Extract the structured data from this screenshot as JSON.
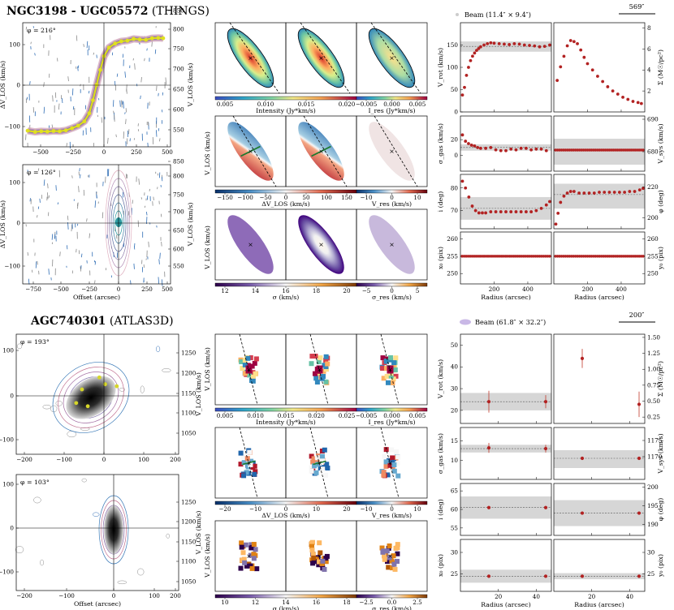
{
  "chart_data": [
    {
      "type": "composite",
      "galaxy": "NGC3198",
      "title_bold": "NGC3198 - UGC05572",
      "title_rest": "(THINGS)",
      "beam_label": "Beam (11.4″ × 9.4″)",
      "scale_label": "569″",
      "pv": {
        "major_phi": "φ = 216°",
        "minor_phi": "φ = 126°",
        "ylabel_left": "ΔV_LOS (km/s)",
        "ylabel_right": "V_LOS (km/s)",
        "xlabel": "Offset (arcsec)",
        "major_xticks": [
          "−500",
          "−250",
          "0",
          "250",
          "500"
        ],
        "minor_xticks": [
          "−750",
          "−500",
          "−250",
          "0",
          "250",
          "500"
        ],
        "left_yticks": [
          "−100",
          "0",
          "100"
        ],
        "right_yticks": [
          "550",
          "600",
          "650",
          "700",
          "750",
          "800",
          "850"
        ],
        "major_rotation_curve": {
          "x": [
            -560,
            -500,
            -450,
            -400,
            -350,
            -300,
            -250,
            -200,
            -150,
            -100,
            -60,
            -30,
            0,
            30,
            60,
            100,
            150,
            200,
            250,
            300,
            350,
            400,
            450,
            500,
            540
          ],
          "y": [
            -148,
            -152,
            -150,
            -151,
            -149,
            -150,
            -147,
            -140,
            -132,
            -118,
            -92,
            -50,
            0,
            48,
            92,
            120,
            133,
            140,
            142,
            148,
            146,
            145,
            150,
            151,
            150
          ]
        }
      },
      "maps": {
        "ylabel": "V_LOS (km/s)",
        "rows": [
          {
            "colorbar_label": "Intensity (Jy*km/s)",
            "ticks": [
              "0.005",
              "0.010",
              "0.015",
              "0.020"
            ],
            "res_label": "I_res (Jy*km/s)",
            "res_ticks": [
              "−0.005",
              "0.000",
              "0.005"
            ]
          },
          {
            "colorbar_label": "ΔV_LOS (km/s)",
            "ticks": [
              "−150",
              "−100",
              "−50",
              "0",
              "50",
              "100",
              "150"
            ],
            "res_label": "V_res (km/s)",
            "res_ticks": [
              "−10",
              "0",
              "10"
            ]
          },
          {
            "colorbar_label": "σ (km/s)",
            "ticks": [
              "12",
              "14",
              "16",
              "18",
              "20"
            ],
            "res_label": "σ_res (km/s)",
            "res_ticks": [
              "−5",
              "0",
              "5"
            ]
          }
        ]
      },
      "profiles": {
        "xlabel": "Radius (arcsec)",
        "xticks": [
          "200",
          "400"
        ],
        "xrange": [
          0,
          540
        ],
        "vrot": {
          "label": "V_rot (km/s)",
          "ticks": [
            "0",
            "50",
            "100",
            "150"
          ],
          "ylim": [
            0,
            200
          ],
          "band": [
            135,
            158
          ],
          "median": 147,
          "x": [
            12,
            24,
            36,
            48,
            60,
            72,
            84,
            96,
            108,
            120,
            140,
            160,
            180,
            200,
            230,
            260,
            290,
            320,
            350,
            380,
            410,
            440,
            470,
            500,
            530
          ],
          "y": [
            38,
            55,
            82,
            100,
            115,
            125,
            132,
            138,
            142,
            146,
            150,
            153,
            155,
            154,
            153,
            152,
            151,
            153,
            152,
            150,
            149,
            148,
            146,
            147,
            150
          ]
        },
        "sigma_surf": {
          "label": "Σ (M☉/pc²)",
          "ticks": [
            "2",
            "4",
            "6",
            "8"
          ],
          "ylim": [
            0,
            8.5
          ],
          "x": [
            20,
            40,
            60,
            80,
            100,
            120,
            140,
            160,
            180,
            200,
            230,
            260,
            290,
            320,
            350,
            380,
            410,
            440,
            470,
            500,
            520
          ],
          "y": [
            3.0,
            4.3,
            5.3,
            6.3,
            6.8,
            6.7,
            6.5,
            5.9,
            5.2,
            4.6,
            4.0,
            3.4,
            2.9,
            2.4,
            2.0,
            1.7,
            1.4,
            1.2,
            1.0,
            0.9,
            0.8
          ]
        },
        "sigma_gas": {
          "label": "σ_gas (km/s)",
          "ticks": [
            "0",
            "20"
          ],
          "ylim": [
            -20,
            50
          ],
          "band": [
            6,
            14
          ],
          "median": 10,
          "x": [
            12,
            30,
            48,
            66,
            84,
            102,
            120,
            150,
            180,
            210,
            240,
            270,
            300,
            330,
            360,
            390,
            420,
            450,
            480,
            510
          ],
          "y": [
            26,
            18,
            15,
            13,
            12,
            10,
            9,
            9,
            10,
            7,
            6,
            6,
            8,
            7,
            9,
            9,
            7,
            8,
            8,
            6
          ]
        },
        "vsys": {
          "label": "V_sys (km/s)",
          "ticks": [
            "680",
            "690"
          ],
          "ylim": [
            674,
            691
          ],
          "band": [
            676,
            684
          ],
          "median": 680.5,
          "value": 680.5
        },
        "incl": {
          "label": "i (deg)",
          "ticks": [
            "70",
            "80"
          ],
          "ylim": [
            62,
            86
          ],
          "band": [
            66,
            76
          ],
          "median": 71,
          "x": [
            12,
            30,
            50,
            70,
            90,
            110,
            130,
            150,
            180,
            210,
            240,
            270,
            300,
            330,
            360,
            390,
            420,
            450,
            480,
            510,
            530
          ],
          "y": [
            83,
            80,
            76,
            72,
            70,
            69,
            69,
            69,
            69.5,
            69.5,
            69.5,
            69.5,
            69.5,
            69.5,
            69.5,
            69.5,
            69.5,
            70,
            71,
            72.5,
            74
          ]
        },
        "pa": {
          "label": "φ (deg)",
          "ticks": [
            "200",
            "220"
          ],
          "ylim": [
            193,
            228
          ],
          "band": [
            206,
            222
          ],
          "median": 215,
          "x": [
            12,
            25,
            40,
            60,
            80,
            100,
            120,
            150,
            180,
            210,
            240,
            270,
            300,
            330,
            360,
            390,
            420,
            450,
            480,
            510,
            530
          ],
          "y": [
            196,
            203,
            210,
            214,
            216,
            217,
            217,
            216,
            216,
            216,
            216,
            216.5,
            216.5,
            216.5,
            216.5,
            216.5,
            216.5,
            217,
            217,
            218,
            219
          ]
        },
        "x0": {
          "label": "x₀ (pix)",
          "ticks": [
            "250",
            "255",
            "260"
          ],
          "ylim": [
            247,
            262
          ],
          "value": 255
        },
        "y0": {
          "label": "y₀ (pix)",
          "ticks": [
            "250",
            "255",
            "260"
          ],
          "ylim": [
            247,
            262
          ],
          "value": 255
        }
      }
    },
    {
      "type": "composite",
      "galaxy": "AGC740301",
      "title_bold": "AGC740301",
      "title_rest": "(ATLAS3D)",
      "beam_label": "Beam (61.8″ × 32.2″)",
      "scale_label": "200″",
      "pv": {
        "major_phi": "φ = 193°",
        "minor_phi": "φ = 103°",
        "ylabel_left": "ΔV_LOS (km/s)",
        "ylabel_right": "V_LOS (km/s)",
        "xlabel": "Offset (arcsec)",
        "major_xticks": [
          "−200",
          "−100",
          "0",
          "100",
          "200"
        ],
        "minor_xticks": [
          "−200",
          "−100",
          "0",
          "100",
          "200"
        ],
        "major_left_yticks": [
          "−100",
          "0",
          "100"
        ],
        "minor_left_yticks": [
          "−100",
          "0",
          "100"
        ],
        "major_right_yticks": [
          "1050",
          "1100",
          "1150",
          "1200",
          "1250"
        ],
        "minor_right_yticks": [
          "1050",
          "1100",
          "1150",
          "1200",
          "1250"
        ],
        "major_points": {
          "x": [
            -55,
            -25,
            20,
            50,
            -40,
            5
          ],
          "y": [
            -22,
            -30,
            25,
            20,
            12,
            42
          ]
        }
      },
      "maps": {
        "ylabel": "V_LOS (km/s)",
        "rows": [
          {
            "colorbar_label": "Intensity (Jy*km/s)",
            "ticks": [
              "0.005",
              "0.010",
              "0.015",
              "0.020",
              "0.025"
            ],
            "res_label": "I_res (Jy*km/s)",
            "res_ticks": [
              "−0.005",
              "0.000",
              "0.005"
            ]
          },
          {
            "colorbar_label": "ΔV_LOS (km/s)",
            "ticks": [
              "−20",
              "−10",
              "0",
              "10",
              "20"
            ],
            "res_label": "V_res (km/s)",
            "res_ticks": [
              "−10",
              "0",
              "10"
            ]
          },
          {
            "colorbar_label": "σ (km/s)",
            "ticks": [
              "10",
              "12",
              "14",
              "16",
              "18"
            ],
            "res_label": "σ_res (km/s)",
            "res_ticks": [
              "−2.5",
              "0.0",
              "2.5"
            ]
          }
        ]
      },
      "profiles": {
        "xlabel": "Radius (arcsec)",
        "xticks": [
          "20",
          "40"
        ],
        "xrange": [
          0,
          48
        ],
        "vrot": {
          "label": "V_rot (km/s)",
          "ticks": [
            "20",
            "30",
            "40",
            "50"
          ],
          "ylim": [
            14,
            55
          ],
          "band": [
            20,
            28
          ],
          "median": 24,
          "x": [
            15,
            45
          ],
          "y": [
            24,
            24
          ],
          "err": [
            5,
            3
          ]
        },
        "sigma_surf": {
          "label": "Σ (M☉/pc²)",
          "ticks": [
            "0.25",
            "0.50",
            "0.75",
            "1.00",
            "1.25",
            "1.50"
          ],
          "ylim": [
            0.15,
            1.55
          ],
          "x": [
            15,
            45
          ],
          "y": [
            1.17,
            0.45
          ],
          "err": [
            0.15,
            0.2
          ]
        },
        "sigma_gas": {
          "label": "σ_gas (km/s)",
          "ticks": [
            "10",
            "15"
          ],
          "ylim": [
            5,
            18.5
          ],
          "band": [
            12,
            14
          ],
          "median": 13,
          "x": [
            15,
            45
          ],
          "y": [
            13.2,
            13
          ],
          "err": [
            1.3,
            1
          ]
        },
        "vsys": {
          "label": "V_sys (km/s)",
          "ticks": [
            "1170",
            "1175"
          ],
          "ylim": [
            1163,
            1179
          ],
          "band": [
            1166.5,
            1172
          ],
          "median": 1169.5,
          "x": [
            15,
            45
          ],
          "y": [
            1169.5,
            1169.5
          ]
        },
        "incl": {
          "label": "i (deg)",
          "ticks": [
            "55",
            "60",
            "65"
          ],
          "ylim": [
            53,
            67
          ],
          "band": [
            57.5,
            63.5
          ],
          "median": 60.5,
          "x": [
            15,
            45
          ],
          "y": [
            60.5,
            60.5
          ]
        },
        "pa": {
          "label": "φ (deg)",
          "ticks": [
            "190",
            "195",
            "200"
          ],
          "ylim": [
            187,
            201
          ],
          "band": [
            189.5,
            196.5
          ],
          "median": 193,
          "x": [
            15,
            45
          ],
          "y": [
            193,
            193
          ]
        },
        "x0": {
          "label": "x₀ (pix)",
          "ticks": [
            "25",
            "30"
          ],
          "ylim": [
            21,
            33
          ],
          "band": [
            23,
            26
          ],
          "median": 24.5,
          "x": [
            15,
            45
          ],
          "y": [
            24.5,
            24.5
          ]
        },
        "y0": {
          "label": "y₀ (pix)",
          "ticks": [
            "25",
            "30"
          ],
          "ylim": [
            21,
            33
          ],
          "band": [
            23.8,
            25.2
          ],
          "median": 24.5,
          "x": [
            15,
            45
          ],
          "y": [
            24.5,
            24.5
          ]
        }
      }
    }
  ]
}
